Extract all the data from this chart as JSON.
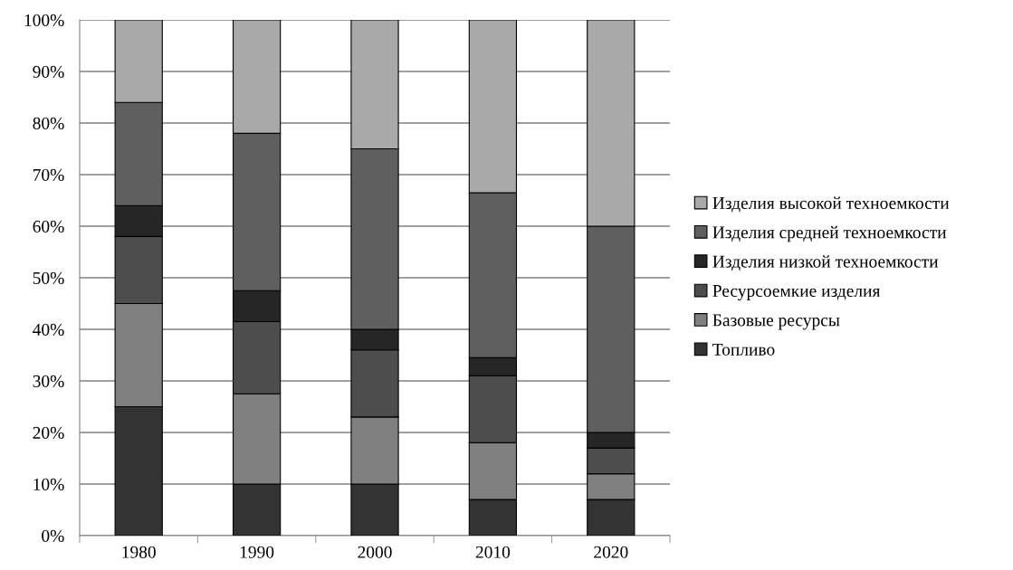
{
  "chart_data": {
    "type": "bar",
    "stacked": true,
    "categories": [
      "1980",
      "1990",
      "2000",
      "2010",
      "2020"
    ],
    "series": [
      {
        "name": "Топливо",
        "color": "#333333",
        "values": [
          25,
          10,
          10,
          7,
          7
        ]
      },
      {
        "name": "Базовые ресурсы",
        "color": "#808080",
        "values": [
          20,
          17.5,
          13,
          11,
          5
        ]
      },
      {
        "name": "Ресурсоемкие изделия",
        "color": "#4d4d4d",
        "values": [
          13,
          14,
          13,
          13,
          5
        ]
      },
      {
        "name": "Изделия низкой техноемкости",
        "color": "#262626",
        "values": [
          6,
          6,
          4,
          3.5,
          3
        ]
      },
      {
        "name": "Изделия средней техноемкости",
        "color": "#5f5f5f",
        "values": [
          20,
          30.5,
          35,
          32,
          40
        ]
      },
      {
        "name": "Изделия высокой техноемкости",
        "color": "#a9a9a9",
        "values": [
          16,
          22,
          25,
          33.5,
          40
        ]
      }
    ],
    "ylim": [
      0,
      100
    ],
    "yticks": [
      {
        "value": 0,
        "label": "0%"
      },
      {
        "value": 10,
        "label": "10%"
      },
      {
        "value": 20,
        "label": "20%"
      },
      {
        "value": 30,
        "label": "30%"
      },
      {
        "value": 40,
        "label": "40%"
      },
      {
        "value": 50,
        "label": "50%"
      },
      {
        "value": 60,
        "label": "60%"
      },
      {
        "value": 70,
        "label": "70%"
      },
      {
        "value": 80,
        "label": "80%"
      },
      {
        "value": 90,
        "label": "90%"
      },
      {
        "value": 100,
        "label": "100%"
      }
    ],
    "grid": "y",
    "legend": "right"
  }
}
